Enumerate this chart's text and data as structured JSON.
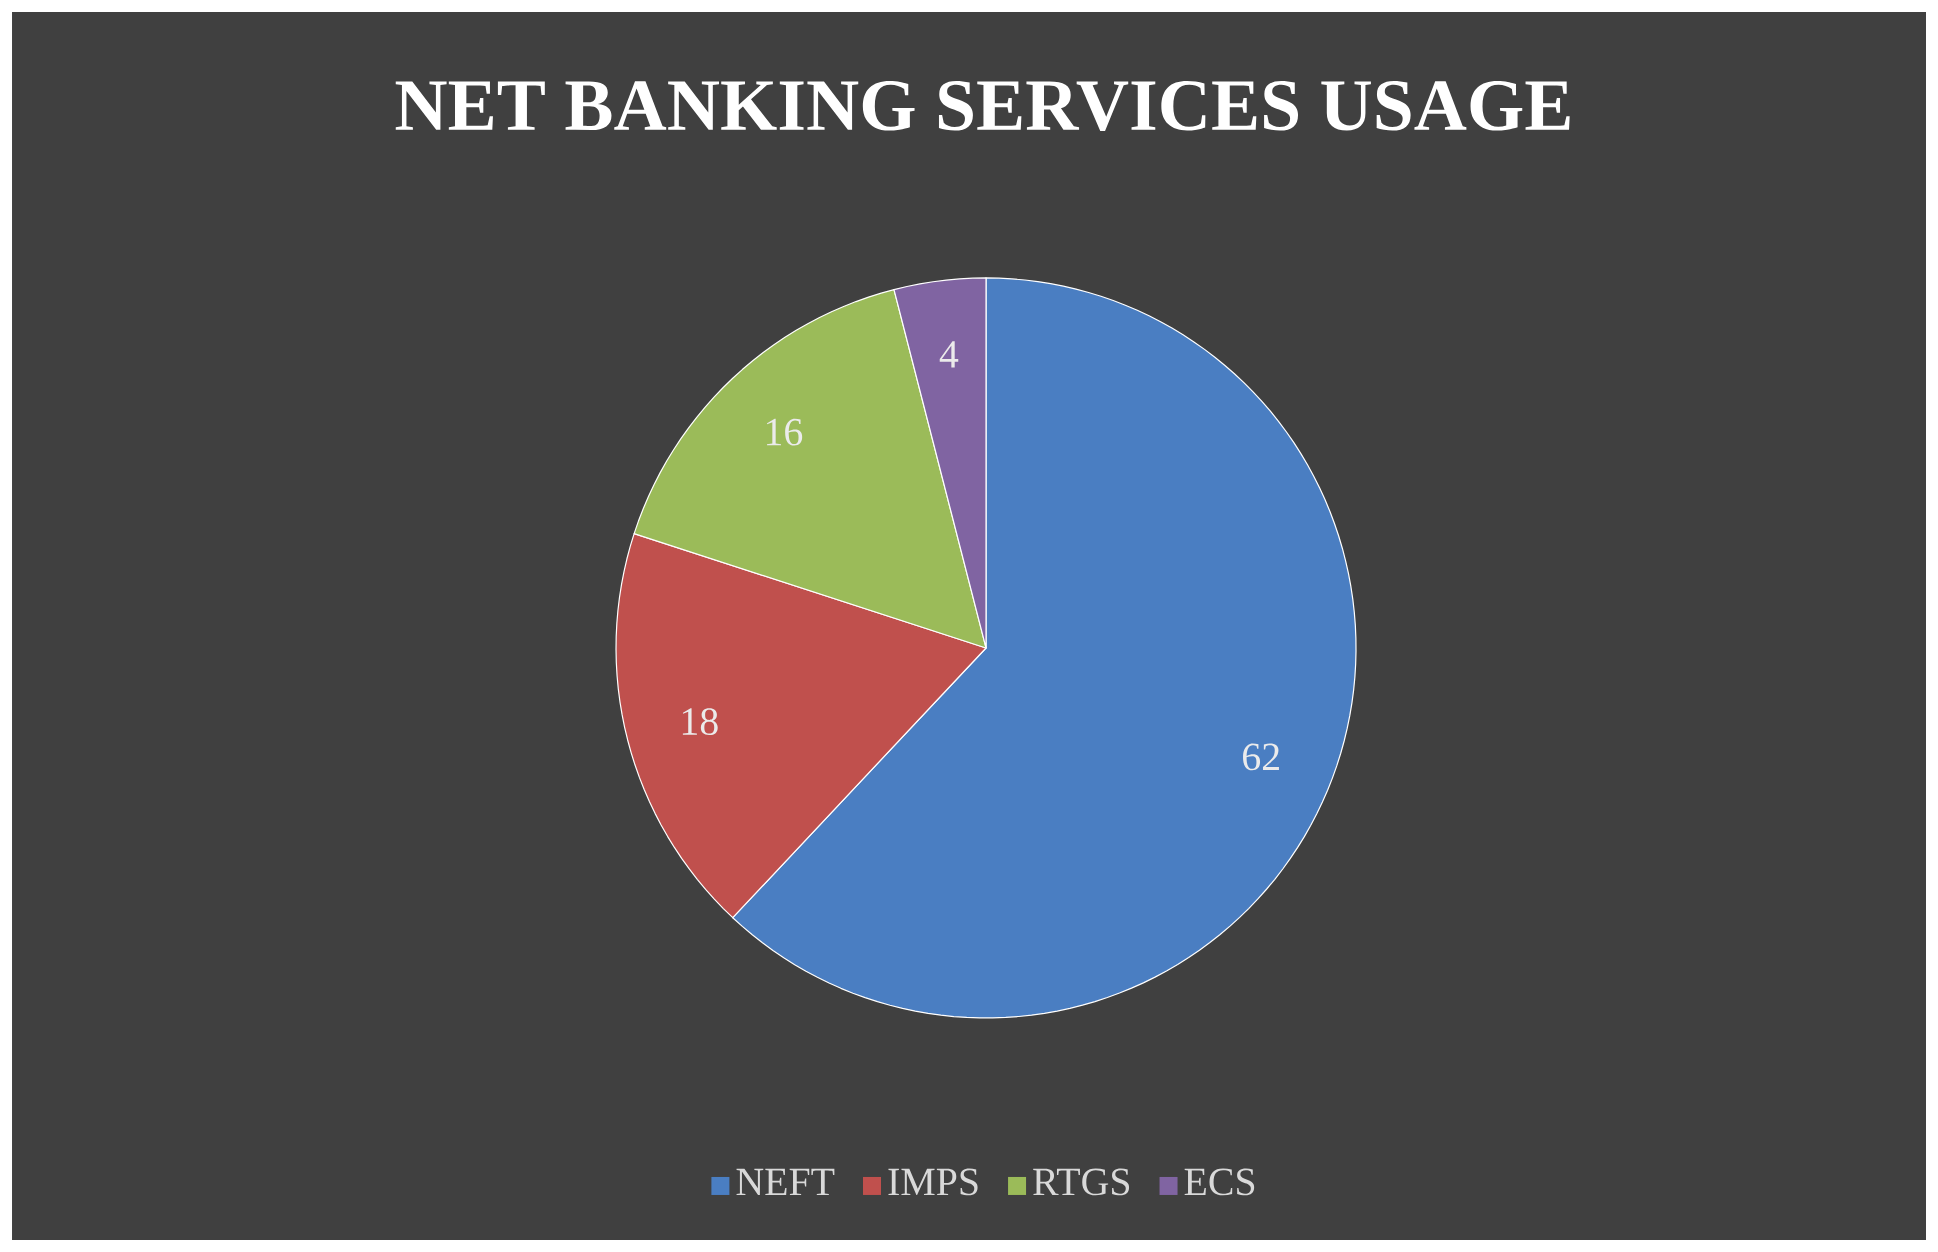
{
  "chart_data": {
    "type": "pie",
    "title": "NET BANKING SERVICES USAGE",
    "categories": [
      "NEFT",
      "IMPS",
      "RTGS",
      "ECS"
    ],
    "values": [
      62,
      18,
      16,
      4
    ],
    "colors": [
      "#4a7ec2",
      "#c0504d",
      "#9bbb59",
      "#8064a2"
    ],
    "data_labels": true,
    "legend": "bottom"
  }
}
